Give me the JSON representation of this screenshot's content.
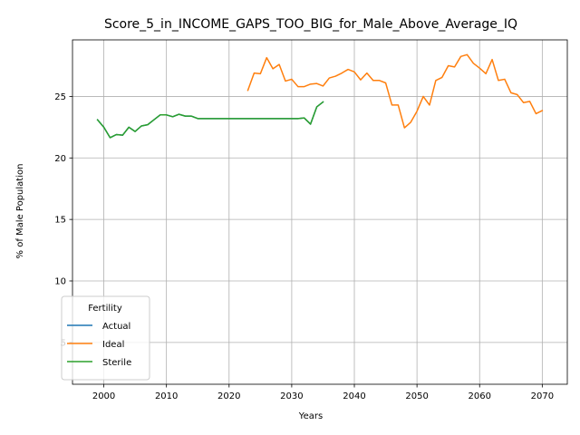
{
  "chart_data": {
    "type": "line",
    "title": "Score_5_in_INCOME_GAPS_TOO_BIG_for_Male_Above_Average_IQ",
    "xlabel": "Years",
    "ylabel": "% of Male Population",
    "xlim": [
      1995,
      2074
    ],
    "ylim": [
      1.6,
      29.6
    ],
    "xticks": [
      2000,
      2010,
      2020,
      2030,
      2040,
      2050,
      2060,
      2070
    ],
    "yticks": [
      5,
      10,
      15,
      20,
      25
    ],
    "grid": true,
    "legend": {
      "title": "Fertility",
      "placement": "lower-left"
    },
    "series": [
      {
        "name": "Actual",
        "color": "#1f77b4",
        "x": [
          1999,
          2000,
          2001,
          2002,
          2003,
          2004,
          2005,
          2006,
          2007,
          2008,
          2009,
          2010,
          2011,
          2012,
          2013,
          2014,
          2015,
          2016,
          2017,
          2018,
          2019,
          2020,
          2021,
          2022,
          2023,
          2024,
          2025,
          2026,
          2027,
          2028,
          2029,
          2030,
          2031,
          2032,
          2033,
          2034,
          2035
        ],
        "y": [
          23.1,
          22.5,
          21.65,
          21.9,
          21.85,
          22.5,
          22.15,
          22.6,
          22.7,
          23.1,
          23.5,
          23.5,
          23.35,
          23.55,
          23.4,
          23.4,
          23.2,
          23.2,
          23.2,
          23.2,
          23.2,
          23.2,
          23.2,
          23.2,
          23.2,
          23.2,
          23.2,
          23.2,
          23.2,
          23.2,
          23.2,
          23.2,
          23.2,
          23.25,
          22.75,
          24.15,
          24.55
        ]
      },
      {
        "name": "Ideal",
        "color": "#ff7f0e",
        "x": [
          2023,
          2024,
          2025,
          2026,
          2027,
          2028,
          2029,
          2030,
          2031,
          2032,
          2033,
          2034,
          2035,
          2036,
          2037,
          2038,
          2039,
          2040,
          2041,
          2042,
          2043,
          2044,
          2045,
          2046,
          2047,
          2048,
          2049,
          2050,
          2051,
          2052,
          2053,
          2054,
          2055,
          2056,
          2057,
          2058,
          2059,
          2060,
          2061,
          2062,
          2063,
          2064,
          2065,
          2066,
          2067,
          2068,
          2069,
          2070
        ],
        "y": [
          25.5,
          26.9,
          26.85,
          28.15,
          27.25,
          27.6,
          26.25,
          26.4,
          25.8,
          25.8,
          26.0,
          26.05,
          25.85,
          26.5,
          26.65,
          26.9,
          27.2,
          27.0,
          26.35,
          26.9,
          26.3,
          26.3,
          26.1,
          24.3,
          24.3,
          22.45,
          22.9,
          23.8,
          25.0,
          24.3,
          26.3,
          26.55,
          27.5,
          27.4,
          28.25,
          28.4,
          27.7,
          27.3,
          26.85,
          28.0,
          26.3,
          26.4,
          25.3,
          25.15,
          24.5,
          24.6,
          23.6,
          23.85
        ]
      },
      {
        "name": "Sterile",
        "color": "#2ca02c",
        "x": [
          1999,
          2000,
          2001,
          2002,
          2003,
          2004,
          2005,
          2006,
          2007,
          2008,
          2009,
          2010,
          2011,
          2012,
          2013,
          2014,
          2015,
          2016,
          2017,
          2018,
          2019,
          2020,
          2021,
          2022,
          2023,
          2024,
          2025,
          2026,
          2027,
          2028,
          2029,
          2030,
          2031,
          2032,
          2033,
          2034,
          2035
        ],
        "y": [
          23.1,
          22.5,
          21.65,
          21.9,
          21.85,
          22.5,
          22.15,
          22.6,
          22.7,
          23.1,
          23.5,
          23.5,
          23.35,
          23.55,
          23.4,
          23.4,
          23.2,
          23.2,
          23.2,
          23.2,
          23.2,
          23.2,
          23.2,
          23.2,
          23.2,
          23.2,
          23.2,
          23.2,
          23.2,
          23.2,
          23.2,
          23.2,
          23.2,
          23.25,
          22.75,
          24.15,
          24.55
        ]
      }
    ]
  }
}
